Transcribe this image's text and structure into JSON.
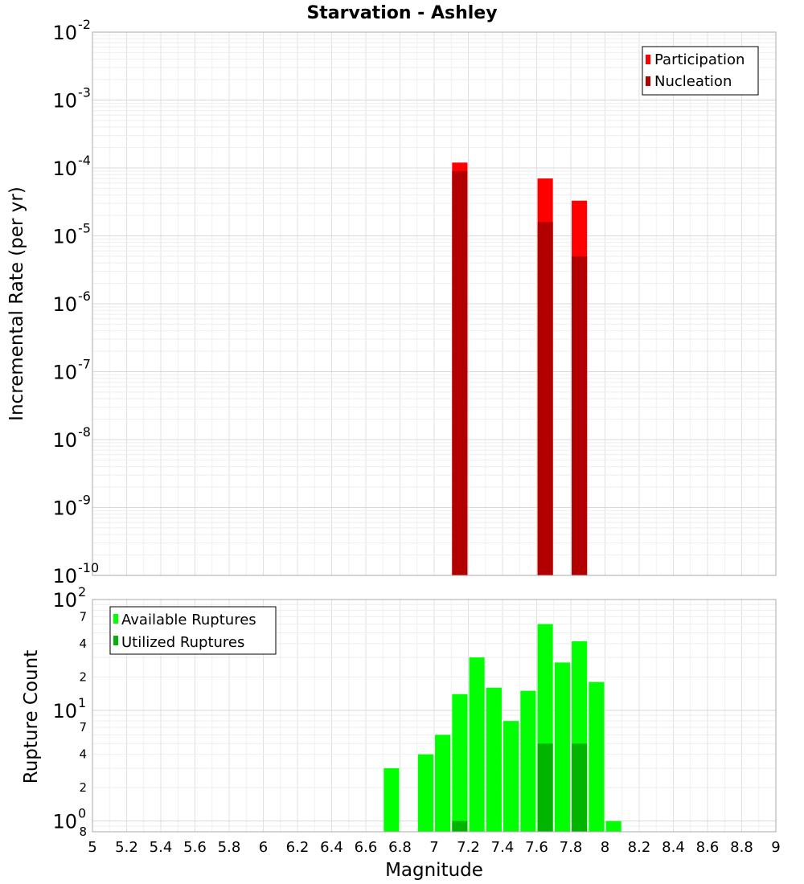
{
  "chart_data": [
    {
      "type": "bar",
      "scale": "log",
      "title": "Starvation - Ashley",
      "xlabel": "Magnitude",
      "ylabel": "Incremental Rate (per yr)",
      "xlim": [
        5,
        9
      ],
      "ylim": [
        1e-10,
        0.01
      ],
      "bar_width": 0.09,
      "y_ticks": [
        {
          "base": "10",
          "exp": "-10",
          "value": 1e-10
        },
        {
          "base": "10",
          "exp": "-9",
          "value": 1e-09
        },
        {
          "base": "10",
          "exp": "-8",
          "value": 1e-08
        },
        {
          "base": "10",
          "exp": "-7",
          "value": 1e-07
        },
        {
          "base": "10",
          "exp": "-6",
          "value": 1e-06
        },
        {
          "base": "10",
          "exp": "-5",
          "value": 1e-05
        },
        {
          "base": "10",
          "exp": "-4",
          "value": 0.0001
        },
        {
          "base": "10",
          "exp": "-3",
          "value": 0.001
        },
        {
          "base": "10",
          "exp": "-2",
          "value": 0.01
        }
      ],
      "series": [
        {
          "name": "Participation",
          "color": "#ff0000",
          "points": [
            {
              "x": 7.15,
              "y": 0.00012
            },
            {
              "x": 7.65,
              "y": 7e-05
            },
            {
              "x": 7.85,
              "y": 3.3e-05
            }
          ]
        },
        {
          "name": "Nucleation",
          "color": "#b20000",
          "points": [
            {
              "x": 7.15,
              "y": 9e-05
            },
            {
              "x": 7.65,
              "y": 1.6e-05
            },
            {
              "x": 7.85,
              "y": 5e-06
            }
          ]
        }
      ],
      "legend": {
        "position": "top-right",
        "items": [
          "Participation",
          "Nucleation"
        ]
      }
    },
    {
      "type": "bar",
      "scale": "log",
      "xlabel": "Magnitude",
      "ylabel": "Rupture Count",
      "xlim": [
        5,
        9
      ],
      "ylim": [
        0.8,
        100
      ],
      "bar_width": 0.09,
      "x_ticks": [
        "5",
        "5.2",
        "5.4",
        "5.6",
        "5.8",
        "6",
        "6.2",
        "6.4",
        "6.6",
        "6.8",
        "7",
        "7.2",
        "7.4",
        "7.6",
        "7.8",
        "8",
        "8.2",
        "8.4",
        "8.6",
        "8.8",
        "9"
      ],
      "y_ticks": [
        {
          "base": "10",
          "exp": "0",
          "value": 1
        },
        {
          "base": "10",
          "exp": "1",
          "value": 10
        },
        {
          "base": "10",
          "exp": "2",
          "value": 100
        }
      ],
      "y_minor_labels": [
        {
          "label": "8",
          "value": 0.8
        },
        {
          "label": "2",
          "value": 2
        },
        {
          "label": "4",
          "value": 4
        },
        {
          "label": "7",
          "value": 7
        },
        {
          "label": "2",
          "value": 20
        },
        {
          "label": "4",
          "value": 40
        },
        {
          "label": "7",
          "value": 70
        }
      ],
      "series": [
        {
          "name": "Available Ruptures",
          "color": "#00ff00",
          "points": [
            {
              "x": 6.75,
              "y": 3
            },
            {
              "x": 6.95,
              "y": 4
            },
            {
              "x": 7.05,
              "y": 6
            },
            {
              "x": 7.15,
              "y": 14
            },
            {
              "x": 7.25,
              "y": 30
            },
            {
              "x": 7.35,
              "y": 16
            },
            {
              "x": 7.45,
              "y": 8
            },
            {
              "x": 7.55,
              "y": 15
            },
            {
              "x": 7.65,
              "y": 60
            },
            {
              "x": 7.75,
              "y": 27
            },
            {
              "x": 7.85,
              "y": 42
            },
            {
              "x": 7.95,
              "y": 18
            },
            {
              "x": 8.05,
              "y": 1
            }
          ]
        },
        {
          "name": "Utilized Ruptures",
          "color": "#00b400",
          "points": [
            {
              "x": 7.15,
              "y": 1
            },
            {
              "x": 7.65,
              "y": 5
            },
            {
              "x": 7.85,
              "y": 5
            }
          ]
        }
      ],
      "legend": {
        "position": "top-left",
        "items": [
          "Available Ruptures",
          "Utilized Ruptures"
        ]
      }
    }
  ]
}
